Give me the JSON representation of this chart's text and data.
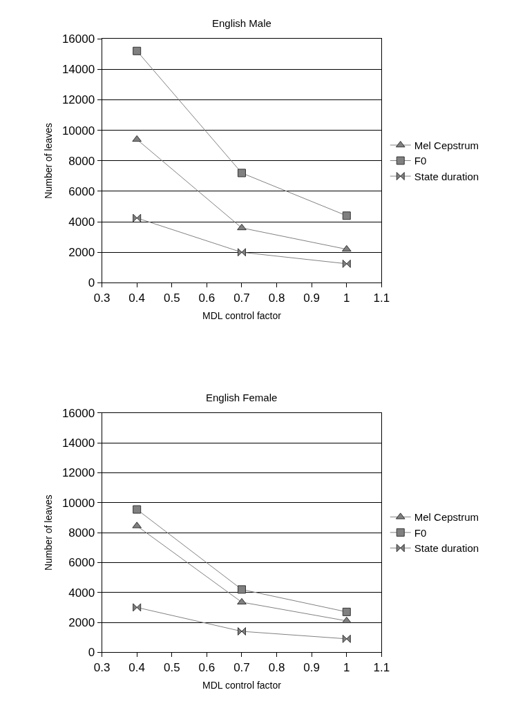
{
  "chart_data": [
    {
      "type": "line",
      "title": "English Male",
      "xlabel": "MDL control factor",
      "ylabel": "Number of leaves",
      "x": [
        0.4,
        0.7,
        1.0
      ],
      "xlim": [
        0.3,
        1.1
      ],
      "xticks": [
        0.3,
        0.4,
        0.5,
        0.6,
        0.7,
        0.8,
        0.9,
        1,
        1.1
      ],
      "ylim": [
        0,
        16000
      ],
      "yticks": [
        0,
        2000,
        4000,
        6000,
        8000,
        10000,
        12000,
        14000,
        16000
      ],
      "grid": "y",
      "legend": "right",
      "series": [
        {
          "name": "Mel Cepstrum",
          "color": "#808080",
          "marker": "triangle",
          "values": [
            9400,
            3600,
            2200
          ]
        },
        {
          "name": "F0",
          "color": "#808080",
          "marker": "square",
          "values": [
            15200,
            7200,
            4400
          ]
        },
        {
          "name": "State duration",
          "color": "#808080",
          "marker": "diamond",
          "values": [
            4250,
            2000,
            1250
          ]
        }
      ]
    },
    {
      "type": "line",
      "title": "English Female",
      "xlabel": "MDL control factor",
      "ylabel": "Number of leaves",
      "x": [
        0.4,
        0.7,
        1.0
      ],
      "xlim": [
        0.3,
        1.1
      ],
      "xticks": [
        0.3,
        0.4,
        0.5,
        0.6,
        0.7,
        0.8,
        0.9,
        1,
        1.1
      ],
      "ylim": [
        0,
        16000
      ],
      "yticks": [
        0,
        2000,
        4000,
        6000,
        8000,
        10000,
        12000,
        14000,
        16000
      ],
      "grid": "y",
      "legend": "right",
      "series": [
        {
          "name": "Mel Cepstrum",
          "color": "#808080",
          "marker": "triangle",
          "values": [
            8450,
            3350,
            2100
          ]
        },
        {
          "name": "F0",
          "color": "#808080",
          "marker": "square",
          "values": [
            9550,
            4200,
            2700
          ]
        },
        {
          "name": "State duration",
          "color": "#808080",
          "marker": "diamond",
          "values": [
            3000,
            1400,
            900
          ]
        }
      ]
    }
  ]
}
